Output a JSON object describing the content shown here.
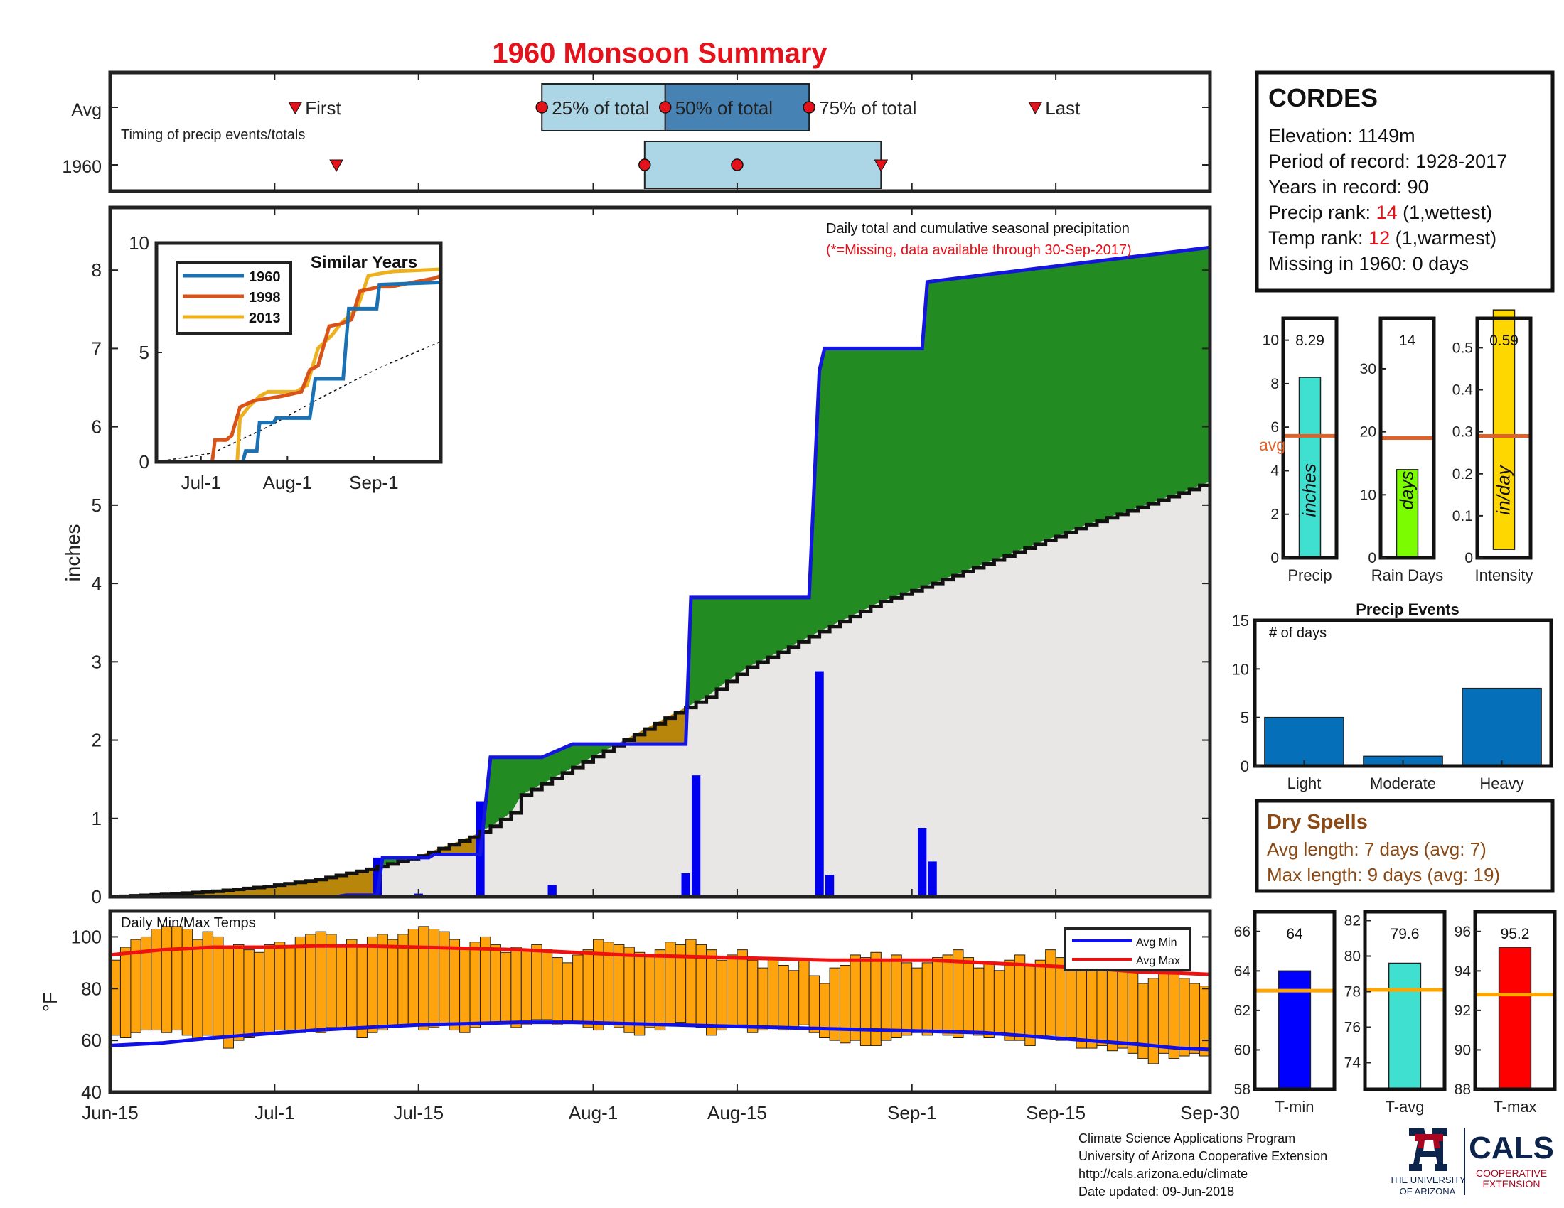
{
  "title": "1960 Monsoon Summary",
  "colors": {
    "title": "#e4131b",
    "red_text": "#e4131b",
    "brown_text": "#8b4a15",
    "deficit_fill": "#b8860b",
    "surplus_fill": "#228b22",
    "avg_fill": "#e9e7e5",
    "daily_bar": "#0000ee",
    "temp_bar": "#ffa40c",
    "avg_min_line": "#1010e8",
    "avg_max_line": "#ee1111",
    "avg_line": "#e0602a",
    "box_light": "#acd6e6",
    "box_dark": "#4682b4",
    "precip_bar": "#40e0d0",
    "rain_days_bar": "#7cfc00",
    "intensity_bar": "#ffd700",
    "events_bar": "#0570b9",
    "tmin_bar": "#0000ff",
    "tavg_bar": "#40e0d0",
    "tmax_bar": "#ff0000",
    "temp_avg_line": "#ffa500",
    "inset_1960": "#1a72b5",
    "inset_1998": "#d95319",
    "inset_2013": "#edb120"
  },
  "timing": {
    "rows": [
      "Avg",
      "1960"
    ],
    "note": "Timing of precip events/totals",
    "avg_labels": {
      "first": "First",
      "p25": "25% of total",
      "p50": "50% of total",
      "p75": "75% of total",
      "last": "Last"
    },
    "avg_days": {
      "first": 18,
      "p25": 42,
      "p50": 54,
      "p75": 68,
      "last": 90
    },
    "year_days": {
      "first": 22,
      "p25": 52,
      "p50": 61,
      "p75": 75
    }
  },
  "info": {
    "station": "CORDES",
    "elevation": "Elevation: 1149m",
    "period": "Period of record: 1928-2017",
    "years": "Years in record: 90",
    "precip_rank_label": "Precip rank: ",
    "precip_rank_value": "14",
    "precip_rank_note": " (1,wettest)",
    "temp_rank_label": "Temp rank: ",
    "temp_rank_value": "12",
    "temp_rank_note": " (1,warmest)",
    "missing": "Missing in 1960: 0 days"
  },
  "main": {
    "legend_line1": "Daily total and cumulative seasonal precipitation",
    "legend_line2": "(*=Missing, data available through 30-Sep-2017)",
    "ylabel": "inches",
    "x_ticks": [
      "Jun-15",
      "Jul-1",
      "Jul-15",
      "Aug-1",
      "Aug-15",
      "Sep-1",
      "Sep-15",
      "Sep-30"
    ]
  },
  "inset": {
    "title": "Similar Years",
    "series": [
      "1960",
      "1998",
      "2013"
    ],
    "x_ticks": [
      "Jul-1",
      "Aug-1",
      "Sep-1"
    ],
    "y_ticks": [
      "0",
      "5",
      "10"
    ]
  },
  "temps": {
    "title": "Daily Min/Max Temps",
    "ylabel": "°F",
    "legend_min": "Avg Min",
    "legend_max": "Avg Max"
  },
  "summary": {
    "precip": {
      "value_label": "8.29",
      "unit": "inches",
      "label": "Precip",
      "avg_text": "avg"
    },
    "rain_days": {
      "value_label": "14",
      "unit": "days",
      "label": "Rain Days"
    },
    "intensity": {
      "value_label": "0.59",
      "unit": "in/day",
      "label": "Intensity"
    }
  },
  "events": {
    "title": "Precip Events",
    "ylabel": "# of days",
    "categories": [
      "Light",
      "Moderate",
      "Heavy"
    ]
  },
  "dry_spells": {
    "title": "Dry Spells",
    "avg_length": "Avg length: 7 days (avg: 7)",
    "max_length": "Max length: 9 days (avg: 19)"
  },
  "temp_summary": {
    "tmin": {
      "value_label": "64",
      "label": "T-min"
    },
    "tavg": {
      "value_label": "79.6",
      "label": "T-avg"
    },
    "tmax": {
      "value_label": "95.2",
      "label": "T-max"
    }
  },
  "footer": {
    "line1": "Climate Science Applications Program",
    "line2": "University of Arizona Cooperative Extension",
    "line3": "http://cals.arizona.edu/climate",
    "line4": " Date updated: 09-Jun-2018",
    "ua_line1": "THE UNIVERSITY",
    "ua_line2": "OF ARIZONA",
    "cals": "CALS",
    "cals_line1": "COOPERATIVE",
    "cals_line2": "EXTENSION"
  },
  "chart_data": [
    {
      "type": "area",
      "name": "main-precip",
      "xlim_days": [
        0,
        107
      ],
      "x_ticks_days": [
        0,
        16,
        30,
        47,
        61,
        78,
        92,
        107
      ],
      "ylim": [
        0,
        8.8
      ],
      "y_ticks": [
        0,
        1,
        2,
        3,
        4,
        5,
        6,
        7,
        8
      ],
      "avg_cumulative": {
        "days": [
          0,
          5,
          10,
          15,
          20,
          25,
          30,
          35,
          37,
          39,
          40,
          45,
          50,
          55,
          58,
          60,
          62,
          65,
          68,
          70,
          75,
          80,
          85,
          90,
          95,
          100,
          105,
          107
        ],
        "values": [
          0,
          0.03,
          0.07,
          0.13,
          0.22,
          0.35,
          0.52,
          0.76,
          0.9,
          1.07,
          1.3,
          1.65,
          2.0,
          2.35,
          2.55,
          2.75,
          2.93,
          3.12,
          3.32,
          3.45,
          3.77,
          4.0,
          4.25,
          4.5,
          4.75,
          4.97,
          5.2,
          5.3
        ]
      },
      "cumulative_1960": {
        "days": [
          0,
          22,
          23,
          26,
          26.5,
          31,
          31.5,
          36,
          37,
          42,
          45,
          56,
          56.5,
          68,
          69,
          69.5,
          79,
          79.5,
          107
        ],
        "values": [
          0,
          0,
          0.02,
          0.02,
          0.5,
          0.5,
          0.54,
          0.54,
          1.78,
          1.78,
          1.95,
          1.95,
          3.82,
          3.82,
          6.72,
          7.0,
          7.0,
          7.85,
          8.29
        ]
      },
      "daily_1960": {
        "days": [
          26,
          30,
          36,
          43,
          56,
          57,
          69,
          70,
          79,
          80
        ],
        "values": [
          0.5,
          0.04,
          1.22,
          0.15,
          0.3,
          1.55,
          2.88,
          0.28,
          0.88,
          0.45
        ]
      }
    },
    {
      "type": "line",
      "name": "similar-years",
      "xlim_days": [
        0,
        102
      ],
      "x_ticks_days": [
        16,
        47,
        78
      ],
      "ylim": [
        0,
        10
      ],
      "series": [
        {
          "name": "1960",
          "days": [
            0,
            31,
            32,
            36,
            37,
            42,
            43,
            55,
            57,
            67,
            69,
            79,
            80,
            102
          ],
          "values": [
            0,
            0,
            0.5,
            0.5,
            1.8,
            1.8,
            2.0,
            2.0,
            3.8,
            3.8,
            7.0,
            7.0,
            8.1,
            8.2
          ]
        },
        {
          "name": "1998",
          "days": [
            0,
            20,
            21,
            25,
            27,
            30,
            35,
            40,
            45,
            52,
            55,
            58,
            62,
            66,
            70,
            73,
            80,
            84,
            100,
            102
          ],
          "values": [
            0,
            0,
            1.0,
            1.0,
            1.2,
            2.5,
            2.8,
            2.9,
            3.0,
            3.2,
            4.2,
            4.4,
            6.2,
            6.3,
            6.5,
            7.8,
            8.0,
            8.0,
            8.4,
            8.5
          ]
        },
        {
          "name": "2013",
          "days": [
            0,
            29,
            30,
            33,
            37,
            40,
            50,
            54,
            58,
            63,
            66,
            72,
            76,
            80,
            85,
            102
          ],
          "values": [
            0,
            0,
            2.0,
            2.5,
            3.0,
            3.2,
            3.2,
            3.5,
            5.2,
            5.8,
            6.3,
            7.0,
            8.5,
            8.6,
            8.7,
            8.8
          ]
        }
      ],
      "climatology": {
        "days": [
          0,
          20,
          40,
          60,
          80,
          102
        ],
        "values": [
          0,
          0.4,
          1.6,
          3.0,
          4.3,
          5.5
        ]
      }
    },
    {
      "type": "bar",
      "name": "daily-temps",
      "xlim_days": [
        0,
        107
      ],
      "ylim": [
        40,
        110
      ],
      "y_ticks": [
        40,
        60,
        80,
        100
      ],
      "tmax": [
        91,
        96,
        99,
        100,
        103,
        104,
        104,
        103,
        99,
        102,
        100,
        96,
        97,
        95,
        94,
        97,
        98,
        96,
        100,
        101,
        102,
        101,
        97,
        99,
        96,
        100,
        101,
        99,
        101,
        103,
        104,
        103,
        102,
        99,
        96,
        98,
        100,
        97,
        94,
        96,
        95,
        97,
        95,
        92,
        90,
        93,
        95,
        99,
        98,
        97,
        96,
        94,
        93,
        95,
        98,
        97,
        99,
        97,
        95,
        91,
        93,
        95,
        91,
        88,
        92,
        89,
        87,
        91,
        85,
        82,
        88,
        89,
        93,
        92,
        94,
        91,
        93,
        90,
        88,
        90,
        92,
        93,
        95,
        92,
        88,
        90,
        87,
        91,
        93,
        89,
        91,
        95,
        92,
        90,
        94,
        96,
        89,
        91,
        93,
        88,
        82,
        84,
        86,
        88,
        84,
        82,
        81
      ],
      "tmin": [
        62,
        61,
        63,
        64,
        64,
        63,
        64,
        62,
        60,
        62,
        61,
        57,
        60,
        61,
        62,
        63,
        64,
        64,
        63,
        64,
        63,
        65,
        65,
        64,
        61,
        63,
        64,
        65,
        66,
        66,
        64,
        65,
        66,
        64,
        63,
        65,
        66,
        67,
        67,
        65,
        66,
        68,
        68,
        66,
        67,
        67,
        65,
        64,
        66,
        65,
        63,
        62,
        65,
        64,
        66,
        67,
        66,
        65,
        62,
        64,
        65,
        66,
        63,
        64,
        65,
        64,
        65,
        66,
        63,
        61,
        60,
        59,
        60,
        58,
        58,
        60,
        61,
        62,
        63,
        62,
        64,
        62,
        61,
        63,
        62,
        61,
        62,
        60,
        60,
        58,
        61,
        62,
        60,
        61,
        57,
        57,
        58,
        56,
        57,
        55,
        53,
        51,
        55,
        53,
        54,
        55,
        54
      ],
      "avg_min": {
        "days": [
          0,
          5,
          10,
          15,
          20,
          25,
          30,
          35,
          40,
          45,
          50,
          55,
          60,
          65,
          70,
          75,
          80,
          85,
          90,
          95,
          100,
          104,
          107
        ],
        "values": [
          58,
          59,
          61,
          62.5,
          64,
          65,
          66,
          66.5,
          67,
          67,
          66.5,
          66,
          65.5,
          65,
          64.5,
          64,
          63.5,
          63,
          61.5,
          60,
          58.5,
          57,
          56.5
        ]
      },
      "avg_max": {
        "days": [
          0,
          5,
          10,
          15,
          20,
          25,
          30,
          35,
          40,
          45,
          50,
          55,
          60,
          65,
          70,
          75,
          80,
          85,
          90,
          95,
          100,
          104,
          107
        ],
        "values": [
          93,
          95,
          96,
          96,
          96.5,
          96.5,
          96,
          95.5,
          95,
          94,
          93,
          92.5,
          92,
          91.5,
          91,
          91,
          91,
          90,
          89,
          88,
          86.5,
          86,
          85.5
        ]
      }
    },
    {
      "type": "bar",
      "name": "season-totals",
      "panels": [
        {
          "label": "Precip",
          "value": 8.29,
          "avg": 5.6,
          "ylim": [
            0,
            11
          ],
          "y_ticks": [
            0,
            2,
            4,
            6,
            8,
            10
          ]
        },
        {
          "label": "Rain Days",
          "value": 14,
          "avg": 19,
          "ylim": [
            0,
            38
          ],
          "y_ticks": [
            0,
            10,
            20,
            30
          ]
        },
        {
          "label": "Intensity",
          "value": 0.59,
          "avg": 0.29,
          "ylim": [
            0,
            0.57
          ],
          "y_ticks": [
            0,
            0.1,
            0.2,
            0.3,
            0.4,
            0.5
          ]
        }
      ]
    },
    {
      "type": "bar",
      "name": "precip-events",
      "categories": [
        "Light",
        "Moderate",
        "Heavy"
      ],
      "values": [
        5,
        1,
        8
      ],
      "ylim": [
        0,
        15
      ],
      "y_ticks": [
        0,
        5,
        10,
        15
      ]
    },
    {
      "type": "bar",
      "name": "temp-summary",
      "panels": [
        {
          "label": "T-min",
          "value": 64,
          "avg": 63,
          "ylim": [
            58,
            67
          ],
          "y_ticks": [
            58,
            60,
            62,
            64,
            66
          ]
        },
        {
          "label": "T-avg",
          "value": 79.6,
          "avg": 78.1,
          "ylim": [
            72.5,
            82.5
          ],
          "y_ticks": [
            74,
            76,
            78,
            80,
            82
          ]
        },
        {
          "label": "T-max",
          "value": 95.2,
          "avg": 92.8,
          "ylim": [
            88,
            97
          ],
          "y_ticks": [
            88,
            90,
            92,
            94,
            96
          ]
        }
      ]
    }
  ]
}
